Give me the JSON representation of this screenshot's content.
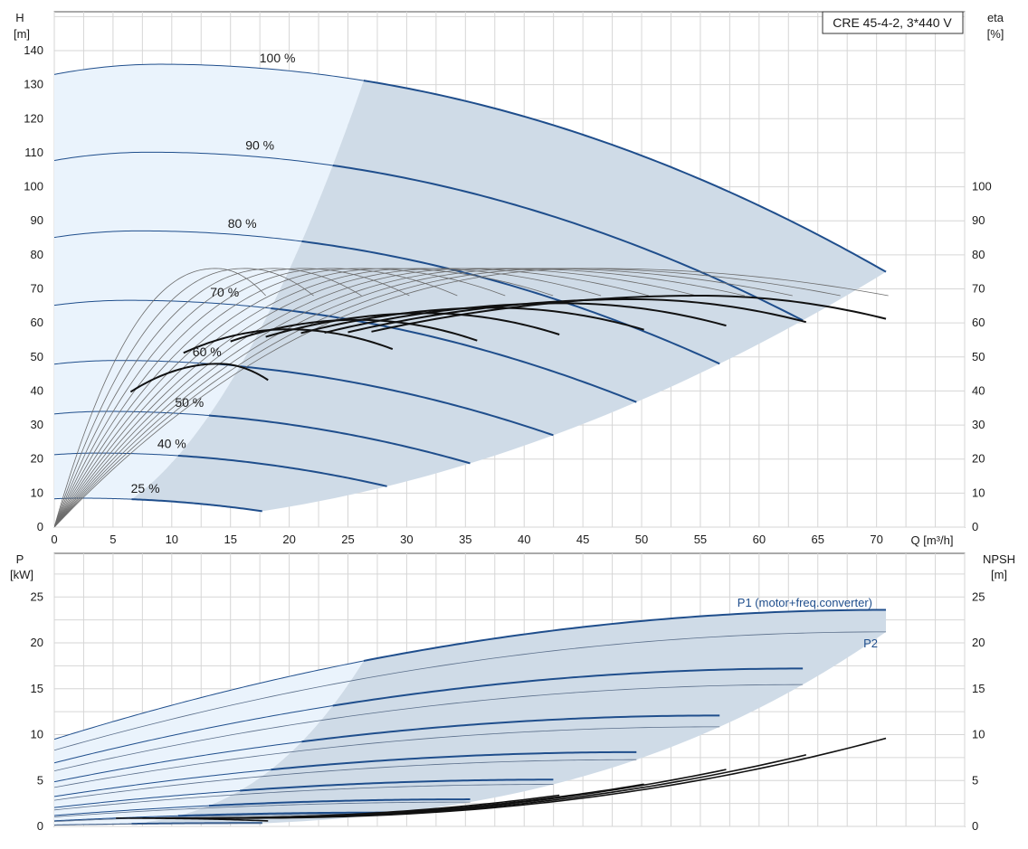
{
  "chart_data": [
    {
      "type": "line",
      "title": "CRE 45-4-2, 3*440 V",
      "left_axis": {
        "label_top": "H",
        "label_unit": "[m]",
        "ylim": [
          0,
          140
        ],
        "ticks": [
          0,
          10,
          20,
          30,
          40,
          50,
          60,
          70,
          80,
          90,
          100,
          110,
          120,
          130,
          140
        ]
      },
      "right_axis": {
        "label_top": "eta",
        "label_unit": "[%]",
        "ylim": [
          0,
          140
        ],
        "ticks": [
          0,
          10,
          20,
          30,
          40,
          50,
          60,
          70,
          80,
          90,
          100
        ]
      },
      "x_axis": {
        "label": "Q [m³/h]",
        "xlim": [
          0,
          77.5
        ],
        "ticks": [
          0,
          5,
          10,
          15,
          20,
          25,
          30,
          35,
          40,
          45,
          50,
          55,
          60,
          65,
          70
        ]
      },
      "grid": true,
      "head_curves": [
        {
          "name": "100 %",
          "speed": 1.0,
          "h0": 133,
          "hmax": 136,
          "qpeak": 9,
          "qend": 70.8,
          "hend": 75
        },
        {
          "name": "90 %",
          "speed": 0.9
        },
        {
          "name": "80 %",
          "speed": 0.8
        },
        {
          "name": "70 %",
          "speed": 0.7
        },
        {
          "name": "60 %",
          "speed": 0.6
        },
        {
          "name": "50 %",
          "speed": 0.5
        },
        {
          "name": "40 %",
          "speed": 0.4
        },
        {
          "name": "25 %",
          "speed": 0.25
        }
      ],
      "efficiency_curves": {
        "eta_max": 76,
        "grey_qpeak_min": 13.8,
        "grey_qpeak_max": 46,
        "grey_qend_min": 18,
        "grey_qend_max": 71,
        "black_eta_max": 68,
        "black_qpeak_min": 14,
        "black_qpeak_max": 55,
        "black_qend": [
          18.2,
          28.8,
          36,
          43,
          50.2,
          57.2,
          64,
          70.8
        ],
        "black_qstart": [
          6.5,
          11,
          15,
          18,
          21,
          23,
          25,
          27
        ]
      }
    },
    {
      "type": "line",
      "left_axis": {
        "label_top": "P",
        "label_unit": "[kW]",
        "ylim": [
          0,
          27
        ],
        "ticks": [
          0,
          5,
          10,
          15,
          20,
          25
        ]
      },
      "right_axis": {
        "label_top": "NPSH",
        "label_unit": "[m]",
        "ylim": [
          0,
          27
        ],
        "ticks": [
          0,
          5,
          10,
          15,
          20,
          25
        ]
      },
      "x_axis": {
        "xlim": [
          0,
          77.5
        ],
        "ticks": [
          0,
          5,
          10,
          15,
          20,
          25,
          30,
          35,
          40,
          45,
          50,
          55,
          60,
          65,
          70
        ]
      },
      "grid": true,
      "series_labels": [
        {
          "name": "P1 (motor+freq.converter)"
        },
        {
          "name": "P2"
        }
      ],
      "power_curves": {
        "p1_start": 9.5,
        "p1_end": 23.6,
        "p2_start": 8.3,
        "p2_end": 21.2,
        "qend": [
          18.2,
          28.8,
          36,
          43,
          50.2,
          57.2,
          64,
          70.8
        ],
        "npsh_end": [
          0.6,
          1.3,
          2.1,
          3.4,
          4.6,
          6.2,
          7.8,
          9.6
        ]
      }
    }
  ]
}
